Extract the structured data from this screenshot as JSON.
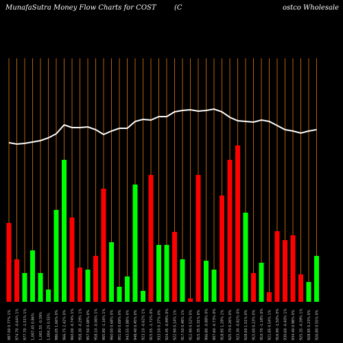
{
  "chart_data": {
    "type": "bar",
    "title_parts": [
      "MunafaSutra  Money Flow  Charts for COST",
      "(C",
      "ostco  Wholesale"
    ],
    "categories": [
      "987.00 0.77% 1%",
      "974.70 -0.64% 1%",
      "977.70 -1.51% 1%",
      "1,007.45 0.86%",
      "1,001.55 -0.39%",
      "1,004.25 0.55%",
      "986.05 1.66% 0%",
      "966.75 2.42% 0%",
      "960.00 -0.74% 1%",
      "958.30 -0.29% 1%",
      "957.50 0.08% 0%",
      "958.10 -0.06% 1%",
      "965.80 -1.16% 1%",
      "960.00 0.68% 0%",
      "951.80 0.69% 0%",
      "943.55 0.88% 0%",
      "948.40 0.45% 0%",
      "923.10 -0.62% 1%",
      "915.55 -1.72% 0%",
      "933.50 0.37% 0%",
      "924.45 -0.99% 0%",
      "922.90 0.14% 1%",
      "917.50 0.48% 1%",
      "912.90 0.52% 0%",
      "915.35 0.31% 0%",
      "906.80 -0.88% 0%",
      "907.60 -0.73% 0%",
      "918.95 1.29% 1%",
      "925.70 0.26% 0%",
      "923.30 -0.82% 0%",
      "928.60 1.51% 0%",
      "915.00 0.23% 0%",
      "910.70 -1.18% 0%",
      "921.85 0.54% 1%",
      "916.90 -1.50% 0%",
      "930.60 -0.40% 1%",
      "934.40 0.98% 0%",
      "925.35 -0.39% 1%",
      "928.95 0.23% 0%",
      "926.80 0.55% 0%"
    ],
    "series": [
      {
        "values": [
          115,
          62,
          42,
          75,
          42,
          18,
          134,
          207,
          123,
          50,
          47,
          67,
          165,
          87,
          22,
          37,
          171,
          16,
          185,
          83,
          83,
          102,
          62,
          5,
          185,
          60,
          47,
          155,
          207,
          228,
          130,
          42,
          57,
          14,
          103,
          90,
          97,
          40,
          29,
          67
        ],
        "colors": [
          "#ff0000",
          "#ff0000",
          "#00ff00",
          "#00ff00",
          "#00ff00",
          "#00ff00",
          "#00ff00",
          "#00ff00",
          "#ff0000",
          "#ff0000",
          "#00ff00",
          "#ff0000",
          "#ff0000",
          "#00ff00",
          "#00ff00",
          "#00ff00",
          "#00ff00",
          "#00ff00",
          "#ff0000",
          "#00ff00",
          "#00ff00",
          "#ff0000",
          "#00ff00",
          "#ff0000",
          "#ff0000",
          "#00ff00",
          "#00ff00",
          "#ff0000",
          "#ff0000",
          "#ff0000",
          "#00ff00",
          "#ff0000",
          "#00ff00",
          "#ff0000",
          "#ff0000",
          "#ff0000",
          "#ff0000",
          "#ff0000",
          "#00ff00",
          "#00ff00"
        ]
      },
      {
        "type": "line",
        "axis": "y2",
        "color": "#ffffff",
        "values": [
          232,
          230,
          231,
          233,
          235,
          239,
          245,
          258,
          254,
          254,
          255,
          251,
          244,
          249,
          253,
          253,
          263,
          266,
          265,
          270,
          270,
          277,
          279,
          280,
          278,
          279,
          281,
          277,
          269,
          264,
          263,
          262,
          265,
          263,
          257,
          251,
          249,
          246,
          249,
          251
        ]
      }
    ],
    "ylim": [
      0,
      355
    ],
    "y2lim": [
      0,
      355
    ],
    "grid_color": "#b8610a"
  }
}
